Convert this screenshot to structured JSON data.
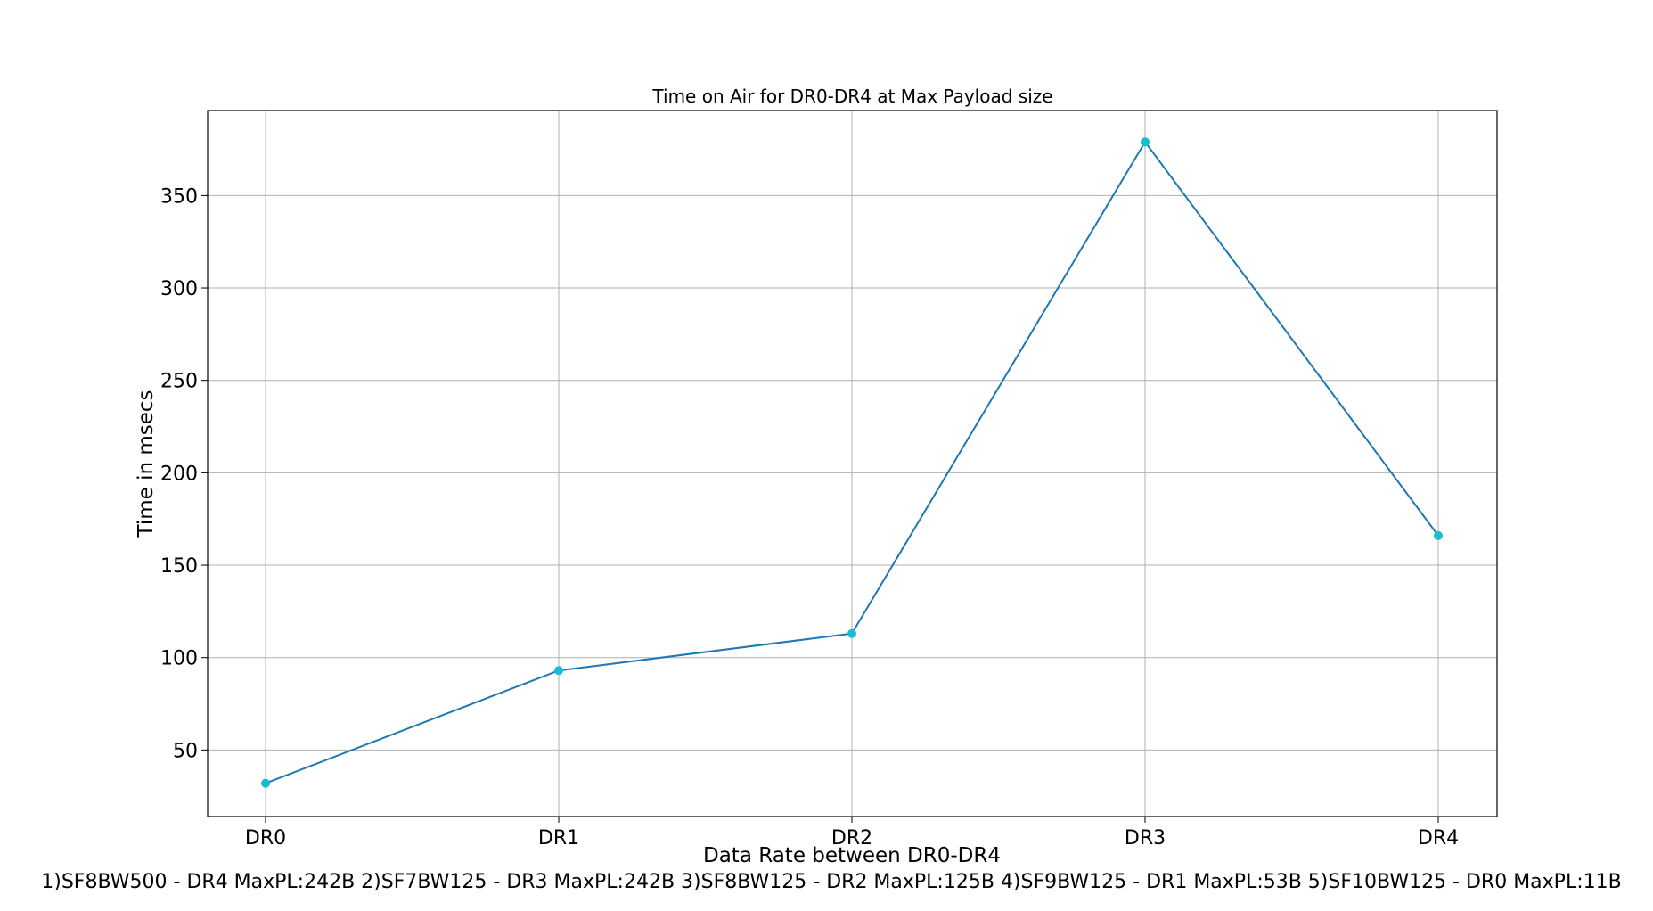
{
  "chart_data": {
    "type": "line",
    "title": "Time on Air for DR0-DR4 at Max Payload size",
    "xlabel": "Data Rate between DR0-DR4",
    "ylabel": "Time in msecs",
    "footnote": "1)SF8BW500 - DR4 MaxPL:242B 2)SF7BW125 - DR3 MaxPL:242B 3)SF8BW125 - DR2 MaxPL:125B 4)SF9BW125 - DR1 MaxPL:53B 5)SF10BW125 - DR0 MaxPL:11B",
    "categories": [
      "DR0",
      "DR1",
      "DR2",
      "DR3",
      "DR4"
    ],
    "values": [
      32,
      93,
      113,
      379,
      166
    ],
    "ylim": [
      14,
      396
    ],
    "yticks": [
      50,
      100,
      150,
      200,
      250,
      300,
      350
    ],
    "grid": true,
    "line_color": "#1f77b4",
    "marker_color": "#17becf"
  }
}
